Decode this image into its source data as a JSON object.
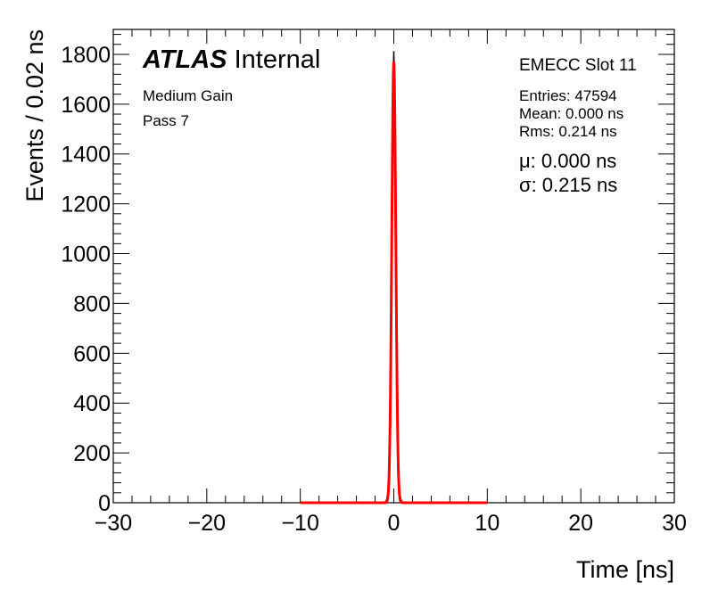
{
  "labels": {
    "atlas": "ATLAS",
    "internal": "Internal",
    "gain": "Medium Gain",
    "pass": "Pass 7",
    "region": "EMECC Slot 11",
    "entries": "Entries: 47594",
    "mean": "Mean: 0.000 ns",
    "rms": "Rms: 0.214 ns",
    "mu": "μ: 0.000 ns",
    "sigma": "σ: 0.215 ns"
  },
  "chart_data": {
    "type": "line",
    "title": "",
    "xlabel": "Time [ns]",
    "ylabel": "Events / 0.02 ns",
    "xlim": [
      -30,
      30
    ],
    "ylim": [
      0,
      1900
    ],
    "x_ticks": [
      -30,
      -20,
      -10,
      0,
      10,
      20,
      30
    ],
    "y_ticks": [
      0,
      200,
      400,
      600,
      800,
      1000,
      1200,
      1400,
      1600,
      1800
    ],
    "grid": false,
    "series": [
      {
        "style": "histogram",
        "color": "#000000",
        "x": [
          -1.0,
          -0.8,
          -0.6,
          -0.5,
          -0.4,
          -0.3,
          -0.2,
          -0.1,
          0.0,
          0.1,
          0.2,
          0.3,
          0.4,
          0.5,
          0.6,
          0.8,
          1.0
        ],
        "y": [
          1,
          8,
          40,
          122,
          330,
          685,
          1128,
          1620,
          1810,
          1620,
          1128,
          685,
          330,
          122,
          40,
          8,
          1
        ]
      },
      {
        "style": "gaussian-fit",
        "color": "#ff0000",
        "fit_range": [
          -10,
          10
        ],
        "amplitude": 1770,
        "mean": 0.0,
        "sigma": 0.215
      }
    ]
  }
}
